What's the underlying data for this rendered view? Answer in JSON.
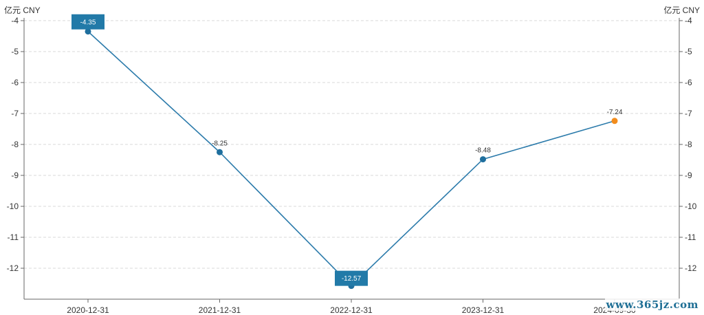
{
  "chart_data": {
    "type": "line",
    "unit_left": "亿元 CNY",
    "unit_right": "亿元 CNY",
    "categories": [
      "2020-12-31",
      "2021-12-31",
      "2022-12-31",
      "2023-12-31",
      "2024-09-30"
    ],
    "values": [
      -4.35,
      -8.25,
      -12.57,
      -8.48,
      -7.24
    ],
    "value_labels": [
      "-4.35",
      "-8.25",
      "-12.57",
      "-8.48",
      "-7.24"
    ],
    "highlighted": [
      "max",
      "min"
    ],
    "y_ticks": [
      "-4",
      "-5",
      "-6",
      "-7",
      "-8",
      "-9",
      "-10",
      "-11",
      "-12"
    ],
    "ylim": [
      -13,
      -4
    ],
    "grid": true,
    "line_color": "#2c7bab",
    "point_color": "#1f6f9e",
    "last_point_color": "#f28c1c",
    "label_box_color": "#227aa8"
  },
  "watermark": "www.365jz.com"
}
